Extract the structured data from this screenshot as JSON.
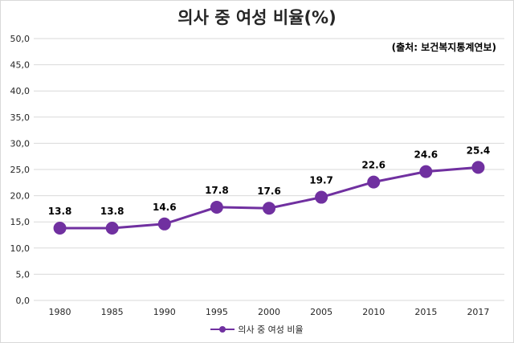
{
  "chart_data": {
    "type": "line",
    "title": "의사 중 여성 비율(%)",
    "source_note": "(출처: 보건복지통계연보)",
    "categories": [
      "1980",
      "1985",
      "1990",
      "1995",
      "2000",
      "2005",
      "2010",
      "2015",
      "2017"
    ],
    "series": [
      {
        "name": "의사 중 여성 비율",
        "values": [
          13.8,
          13.8,
          14.6,
          17.8,
          17.6,
          19.7,
          22.6,
          24.6,
          25.4
        ],
        "labels": [
          "13.8",
          "13.8",
          "14.6",
          "17.8",
          "17.6",
          "19.7",
          "22.6",
          "24.6",
          "25.4"
        ],
        "color": "#7030a0"
      }
    ],
    "y_ticks": [
      "0,0",
      "5,0",
      "10,0",
      "15,0",
      "20,0",
      "25,0",
      "30,0",
      "35,0",
      "40,0",
      "45,0",
      "50,0"
    ],
    "ylim": [
      0,
      50
    ],
    "y_step": 5,
    "grid": true,
    "legend_position": "bottom",
    "gridline_color": "#d9d9d9"
  }
}
